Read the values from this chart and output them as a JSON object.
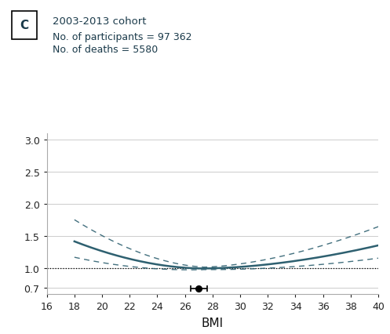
{
  "title_label": "2003-2013 cohort",
  "subtitle1": "No. of participants = 97 362",
  "subtitle2": "No. of deaths = 5580",
  "panel_label": "C",
  "xlabel": "BMI",
  "xlim": [
    16,
    40
  ],
  "xticks": [
    16,
    18,
    20,
    22,
    24,
    26,
    28,
    30,
    32,
    34,
    36,
    38,
    40
  ],
  "ylim": [
    0.6,
    3.1
  ],
  "yticks": [
    0.7,
    1.0,
    1.5,
    2.0,
    2.5,
    3.0
  ],
  "ytick_labels": [
    "0.7",
    "1.0",
    "1.5",
    "2.0",
    "2.5",
    "3.0"
  ],
  "ref_line_y": 1.0,
  "curve_color": "#2e6070",
  "ci_color": "#2e6070",
  "dot_x": 27.0,
  "dot_y": 0.685,
  "dot_xerr": 0.6,
  "background_color": "#ffffff",
  "grid_color": "#cccccc",
  "min_bmi": 27.3,
  "min_val": 0.995
}
